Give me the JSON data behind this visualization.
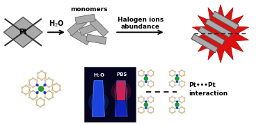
{
  "bg_color": "#ffffff",
  "pt_pt_label": "Pt•••Pt\ninteraction",
  "h2o_pbs_label": "H₂O  PBS",
  "h2o_label": "H₂O",
  "halogen_label": "Halogen ions\nabundance",
  "monomers_label": "monomers",
  "orange": "#e8a020",
  "green_pt": "#1a9e30",
  "blue_n": "#1a3acc",
  "gray_atom": "#c8c8c8",
  "dark_bg": "#050520",
  "blue_vial": "#1833cc",
  "red_vial": "#cc1133",
  "gray_bar": "#aaaaaa",
  "gray_bar_edge": "#666666",
  "red_burst": "#dd1111"
}
